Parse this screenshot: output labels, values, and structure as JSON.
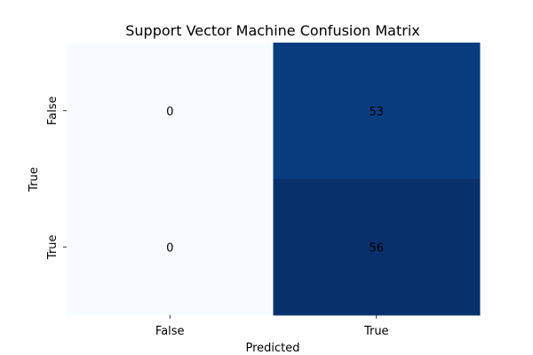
{
  "chart_data": {
    "type": "heatmap",
    "title": "Support Vector Machine Confusion Matrix",
    "xlabel": "Predicted",
    "ylabel": "True",
    "x_categories": [
      "False",
      "True"
    ],
    "y_categories": [
      "False",
      "True"
    ],
    "values": [
      [
        0,
        53
      ],
      [
        0,
        56
      ]
    ],
    "value_range": [
      0,
      56
    ],
    "colormap": "Blues",
    "colors": {
      "low": "#f7fbff",
      "high": "#08306b",
      "text_dark": "#262626",
      "text_light": "#ffffff"
    },
    "grid": false,
    "colorbar": false
  }
}
